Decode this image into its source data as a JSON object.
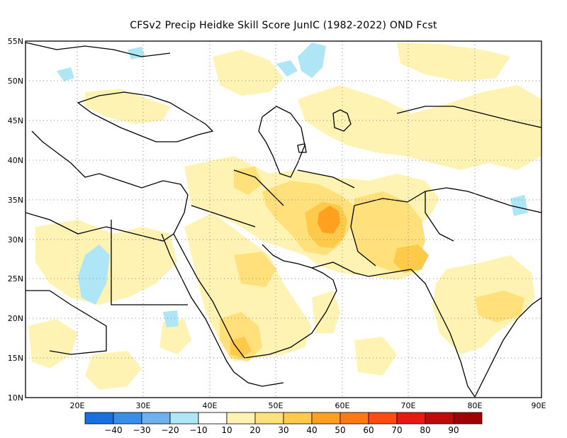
{
  "title": "CFSv2 Precip Heidke Skill Score JunIC (1982-2022) OND Fcst",
  "map": {
    "lon_range": [
      12,
      90
    ],
    "lat_range": [
      10,
      55
    ],
    "lat_labels": [
      "55N",
      "50N",
      "45N",
      "40N",
      "35N",
      "30N",
      "25N",
      "20N",
      "15N",
      "10N"
    ],
    "lon_labels": [
      "20E",
      "30E",
      "40E",
      "50E",
      "60E",
      "70E",
      "80E",
      "90E"
    ]
  },
  "colorbar": {
    "labels": [
      "-40",
      "-30",
      "-20",
      "-10",
      "10",
      "20",
      "30",
      "40",
      "50",
      "60",
      "70",
      "80",
      "90"
    ],
    "colors": [
      "#1a6fe0",
      "#3a8de8",
      "#6fb1ef",
      "#aee6f5",
      "#ffffff",
      "#fff3b3",
      "#ffe07a",
      "#ffc94a",
      "#ffa020",
      "#ff7a10",
      "#ff4a10",
      "#e81a10",
      "#c00a0a",
      "#a00000"
    ]
  },
  "skill_areas": [
    {
      "color": "#fff3b3"
    },
    {
      "color": "#ffe07a"
    },
    {
      "color": "#ffc94a"
    },
    {
      "color": "#ffa020"
    },
    {
      "color": "#aee6f5"
    }
  ]
}
